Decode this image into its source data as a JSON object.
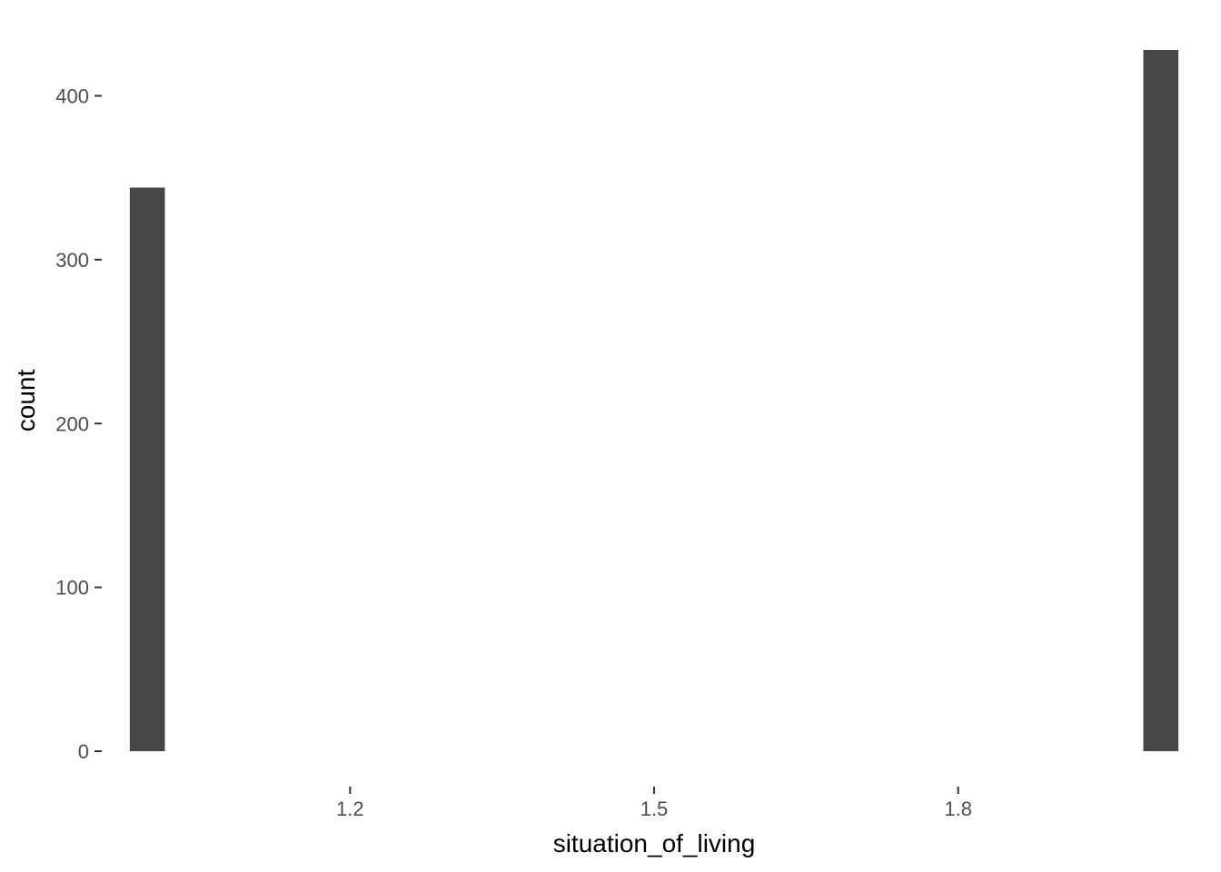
{
  "chart_data": {
    "type": "bar",
    "xlabel": "situation_of_living",
    "ylabel": "count",
    "x_ticks": [
      1.2,
      1.5,
      1.8
    ],
    "y_ticks": [
      0,
      100,
      200,
      300,
      400
    ],
    "xlim": [
      0.955,
      2.045
    ],
    "ylim": [
      0,
      428
    ],
    "bins": [
      {
        "x": 1.0,
        "count": 344
      },
      {
        "x": 2.0,
        "count": 428
      }
    ],
    "grid": false,
    "bar_color": "#474747"
  }
}
